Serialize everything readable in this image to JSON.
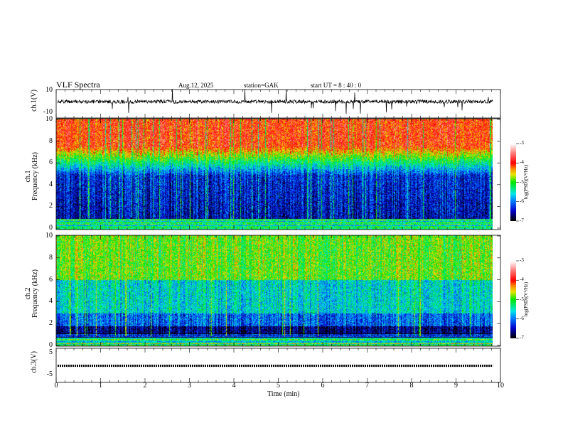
{
  "header": {
    "title": "VLF  Spectra",
    "date": "Aug.12, 2025",
    "station": "station=GAK",
    "start_ut": "start  UT  =   8  : 40 : 0"
  },
  "chart_data": [
    {
      "type": "line",
      "name": "ch1-waveform",
      "ylabel": "ch.1(V)",
      "ylim": [
        -10,
        10
      ],
      "yticks": [
        "10",
        "-10"
      ],
      "xlim": [
        0,
        10
      ],
      "description_level": "noise around 0 V with spikes"
    },
    {
      "type": "heatmap",
      "name": "ch1-spectrogram",
      "ylabel_line1": "ch.1",
      "ylabel_line2": "Frequency  (kHz)",
      "ylim": [
        0,
        10
      ],
      "yticks": [
        "0",
        "2",
        "4",
        "6",
        "8",
        "10"
      ],
      "xlim": [
        0,
        10
      ],
      "colorbar": {
        "label": "log(PSD)(V²/Hz)",
        "range": [
          -7,
          -3
        ],
        "ticks": [
          "-3",
          "-4",
          "-5",
          "-6",
          "-7"
        ]
      }
    },
    {
      "type": "heatmap",
      "name": "ch2-spectrogram",
      "ylabel_line1": "ch.2",
      "ylabel_line2": "Frequency  (kHz)",
      "ylim": [
        0,
        10
      ],
      "yticks": [
        "0",
        "2",
        "4",
        "6",
        "8",
        "10"
      ],
      "xlim": [
        0,
        10
      ],
      "colorbar": {
        "label": "log(PSD)(V²/Hz)",
        "range": [
          -7,
          -3
        ],
        "ticks": [
          "-3",
          "-4",
          "-5",
          "-6",
          "-7"
        ]
      }
    },
    {
      "type": "line",
      "name": "ch3-waveform",
      "ylabel": "ch.3(V)",
      "ylim": [
        -5,
        5
      ],
      "yticks": [
        "5",
        "-5"
      ],
      "level": -1,
      "xlim": [
        0,
        10
      ]
    }
  ],
  "xaxis": {
    "label": "Time  (min)",
    "ticks": [
      "0",
      "1",
      "2",
      "3",
      "4",
      "5",
      "6",
      "7",
      "8",
      "9",
      "10"
    ],
    "data_end": 9.83
  }
}
